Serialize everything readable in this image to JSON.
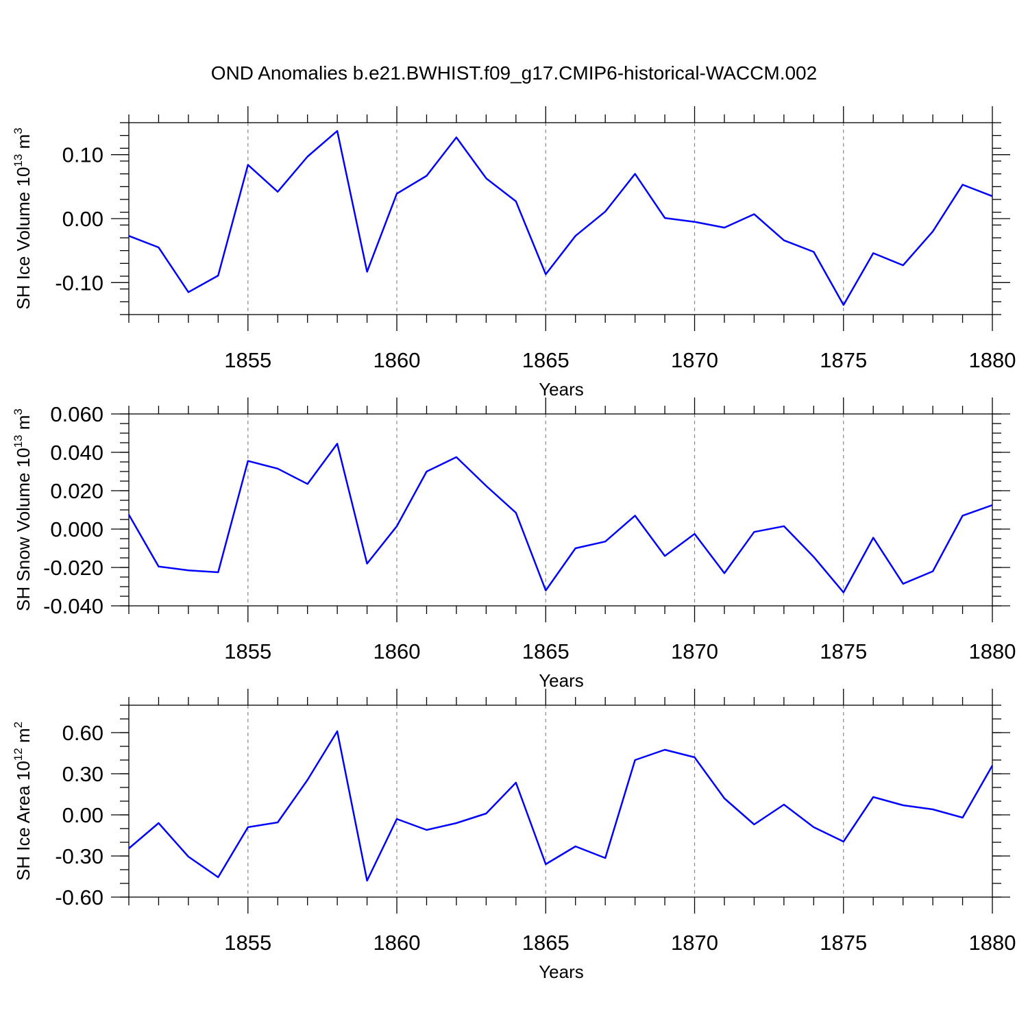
{
  "title": "OND Anomalies b.e21.BWHIST.f09_g17.CMIP6-historical-WACCM.002",
  "chart_data": [
    {
      "type": "line",
      "title": "OND Anomalies b.e21.BWHIST.f09_g17.CMIP6-historical-WACCM.002",
      "xlabel": "Years",
      "ylabel_text": "SH Ice Volume 10",
      "ylabel_sup1": "13",
      "ylabel_mid": " m",
      "ylabel_sup2": "3",
      "xlim": [
        1851,
        1880
      ],
      "ylim": [
        -0.15,
        0.15
      ],
      "xticks": [
        1855,
        1860,
        1865,
        1870,
        1875,
        1880
      ],
      "xtick_labels": [
        "1855",
        "1860",
        "1865",
        "1870",
        "1875",
        "1880"
      ],
      "yticks": [
        -0.1,
        0.0,
        0.1
      ],
      "ytick_labels": [
        "-0.10",
        "0.00",
        "0.10"
      ],
      "y_minor_step": 0.02,
      "grid": "vertical dashed at major x ticks",
      "color": "#0000ff",
      "x": [
        1851,
        1852,
        1853,
        1854,
        1855,
        1856,
        1857,
        1858,
        1859,
        1860,
        1861,
        1862,
        1863,
        1864,
        1865,
        1866,
        1867,
        1868,
        1869,
        1870,
        1871,
        1872,
        1873,
        1874,
        1875,
        1876,
        1877,
        1878,
        1879,
        1880
      ],
      "y": [
        -0.027,
        -0.045,
        -0.115,
        -0.089,
        0.084,
        0.042,
        0.097,
        0.137,
        -0.083,
        0.039,
        0.067,
        0.127,
        0.063,
        0.027,
        -0.087,
        -0.027,
        0.011,
        0.07,
        0.001,
        -0.005,
        -0.014,
        0.007,
        -0.034,
        -0.052,
        -0.135,
        -0.054,
        -0.073,
        -0.02,
        0.053,
        0.035
      ]
    },
    {
      "type": "line",
      "xlabel": "Years",
      "ylabel_text": "SH Snow Volume 10",
      "ylabel_sup1": "13",
      "ylabel_mid": " m",
      "ylabel_sup2": "3",
      "xlim": [
        1851,
        1880
      ],
      "ylim": [
        -0.04,
        0.06
      ],
      "xticks": [
        1855,
        1860,
        1865,
        1870,
        1875,
        1880
      ],
      "xtick_labels": [
        "1855",
        "1860",
        "1865",
        "1870",
        "1875",
        "1880"
      ],
      "yticks": [
        -0.04,
        -0.02,
        0.0,
        0.02,
        0.04,
        0.06
      ],
      "ytick_labels": [
        "-0.040",
        "-0.020",
        "0.000",
        "0.020",
        "0.040",
        "0.060"
      ],
      "y_minor_step": 0.005,
      "grid": "vertical dashed at major x ticks",
      "color": "#0000ff",
      "x": [
        1851,
        1852,
        1853,
        1854,
        1855,
        1856,
        1857,
        1858,
        1859,
        1860,
        1861,
        1862,
        1863,
        1864,
        1865,
        1866,
        1867,
        1868,
        1869,
        1870,
        1871,
        1872,
        1873,
        1874,
        1875,
        1876,
        1877,
        1878,
        1879,
        1880
      ],
      "y": [
        0.0075,
        -0.0195,
        -0.0215,
        -0.0225,
        0.0355,
        0.0315,
        0.0235,
        0.0445,
        -0.018,
        0.0015,
        0.03,
        0.0375,
        0.0225,
        0.0085,
        -0.032,
        -0.01,
        -0.0065,
        0.007,
        -0.014,
        -0.0025,
        -0.023,
        -0.0015,
        0.0015,
        -0.0145,
        -0.033,
        -0.0045,
        -0.0285,
        -0.022,
        0.007,
        0.0125
      ]
    },
    {
      "type": "line",
      "xlabel": "Years",
      "ylabel_text": "SH Ice Area 10",
      "ylabel_sup1": "12",
      "ylabel_mid": " m",
      "ylabel_sup2": "2",
      "xlim": [
        1851,
        1880
      ],
      "ylim": [
        -0.6,
        0.8
      ],
      "xticks": [
        1855,
        1860,
        1865,
        1870,
        1875,
        1880
      ],
      "xtick_labels": [
        "1855",
        "1860",
        "1865",
        "1870",
        "1875",
        "1880"
      ],
      "yticks": [
        -0.6,
        -0.3,
        0.0,
        0.3,
        0.6
      ],
      "ytick_labels": [
        "-0.60",
        "-0.30",
        "0.00",
        "0.30",
        "0.60"
      ],
      "y_minor_step": 0.1,
      "grid": "vertical dashed at major x ticks",
      "color": "#0000ff",
      "x": [
        1851,
        1852,
        1853,
        1854,
        1855,
        1856,
        1857,
        1858,
        1859,
        1860,
        1861,
        1862,
        1863,
        1864,
        1865,
        1866,
        1867,
        1868,
        1869,
        1870,
        1871,
        1872,
        1873,
        1874,
        1875,
        1876,
        1877,
        1878,
        1879,
        1880
      ],
      "y": [
        -0.245,
        -0.06,
        -0.305,
        -0.455,
        -0.09,
        -0.055,
        0.255,
        0.61,
        -0.48,
        -0.03,
        -0.11,
        -0.06,
        0.01,
        0.235,
        -0.36,
        -0.23,
        -0.315,
        0.4,
        0.475,
        0.42,
        0.12,
        -0.07,
        0.075,
        -0.09,
        -0.195,
        0.13,
        0.07,
        0.04,
        -0.02,
        0.36
      ]
    }
  ]
}
